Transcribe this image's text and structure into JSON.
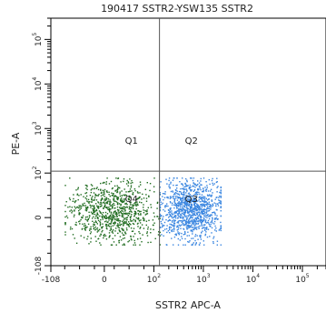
{
  "chart_data": {
    "type": "scatter",
    "title": "190417 SSTR2-YSW135 SSTR2",
    "xlabel": "SSTR2 APC-A",
    "ylabel": "PE-A",
    "x_scale": "biexponential",
    "y_scale": "biexponential",
    "xlim": [
      -108,
      300000
    ],
    "ylim": [
      -108,
      300000
    ],
    "x_ticks": [
      {
        "value": -108,
        "base": "-108",
        "exp": ""
      },
      {
        "value": 0,
        "base": "0",
        "exp": ""
      },
      {
        "value": 100,
        "base": "10",
        "exp": "2"
      },
      {
        "value": 1000,
        "base": "10",
        "exp": "3"
      },
      {
        "value": 10000,
        "base": "10",
        "exp": "4"
      },
      {
        "value": 100000,
        "base": "10",
        "exp": "5"
      }
    ],
    "y_ticks": [
      {
        "value": -108,
        "base": "-108",
        "exp": ""
      },
      {
        "value": 0,
        "base": "0",
        "exp": ""
      },
      {
        "value": 100,
        "base": "10",
        "exp": "2"
      },
      {
        "value": 1000,
        "base": "10",
        "exp": "3"
      },
      {
        "value": 10000,
        "base": "10",
        "exp": "4"
      },
      {
        "value": 100000,
        "base": "10",
        "exp": "5"
      }
    ],
    "gate": {
      "x": 130,
      "y": 110
    },
    "quadrants": [
      {
        "label": "Q1",
        "position": "upper-left"
      },
      {
        "label": "Q2",
        "position": "upper-right"
      },
      {
        "label": "Q3",
        "position": "lower-right"
      },
      {
        "label": "Q4",
        "position": "lower-left"
      }
    ],
    "populations": [
      {
        "region": "Q4",
        "color": "#1f6b1f",
        "x_range": [
          -80,
          130
        ],
        "y_range": [
          -60,
          90
        ]
      },
      {
        "region": "Q3",
        "color": "#3a86e0",
        "x_range": [
          130,
          2200
        ],
        "y_range": [
          -60,
          90
        ]
      }
    ],
    "grid": false,
    "legend": "none"
  }
}
